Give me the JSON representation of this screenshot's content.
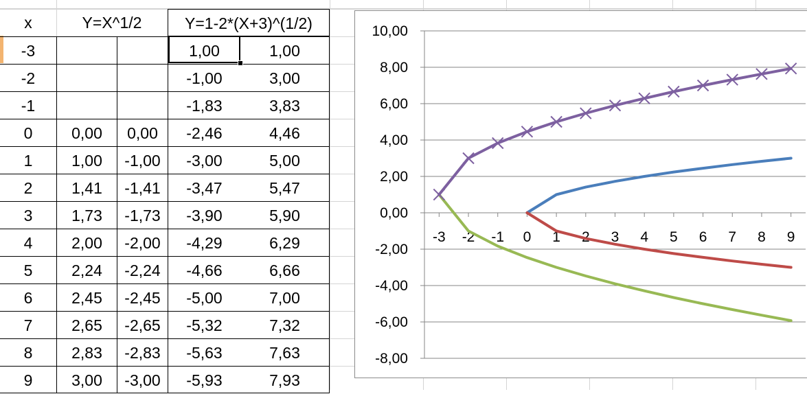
{
  "table": {
    "header": {
      "x": "x",
      "y1": "Y=X^1/2",
      "y2": "Y=1-2*(X+3)^(1/2)"
    },
    "rows": [
      {
        "x": "-3",
        "a": "",
        "b": "",
        "c": "1,00",
        "d": "1,00"
      },
      {
        "x": "-2",
        "a": "",
        "b": "",
        "c": "-1,00",
        "d": "3,00"
      },
      {
        "x": "-1",
        "a": "",
        "b": "",
        "c": "-1,83",
        "d": "3,83"
      },
      {
        "x": "0",
        "a": "0,00",
        "b": "0,00",
        "c": "-2,46",
        "d": "4,46"
      },
      {
        "x": "1",
        "a": "1,00",
        "b": "-1,00",
        "c": "-3,00",
        "d": "5,00"
      },
      {
        "x": "2",
        "a": "1,41",
        "b": "-1,41",
        "c": "-3,47",
        "d": "5,47"
      },
      {
        "x": "3",
        "a": "1,73",
        "b": "-1,73",
        "c": "-3,90",
        "d": "5,90"
      },
      {
        "x": "4",
        "a": "2,00",
        "b": "-2,00",
        "c": "-4,29",
        "d": "6,29"
      },
      {
        "x": "5",
        "a": "2,24",
        "b": "-2,24",
        "c": "-4,66",
        "d": "6,66"
      },
      {
        "x": "6",
        "a": "2,45",
        "b": "-2,45",
        "c": "-5,00",
        "d": "7,00"
      },
      {
        "x": "7",
        "a": "2,65",
        "b": "-2,65",
        "c": "-5,32",
        "d": "7,32"
      },
      {
        "x": "8",
        "a": "2,83",
        "b": "-2,83",
        "c": "-5,63",
        "d": "7,63"
      },
      {
        "x": "9",
        "a": "3,00",
        "b": "-3,00",
        "c": "-5,93",
        "d": "7,93"
      }
    ]
  },
  "chart_data": {
    "type": "line",
    "ylim": [
      -8,
      10
    ],
    "yticks": [
      "-8,00",
      "-6,00",
      "-4,00",
      "-2,00",
      "0,00",
      "2,00",
      "4,00",
      "6,00",
      "8,00",
      "10,00"
    ],
    "ytick_values": [
      -8,
      -6,
      -4,
      -2,
      0,
      2,
      4,
      6,
      8,
      10
    ],
    "xticks": [
      "-3",
      "-2",
      "-1",
      "0",
      "1",
      "2",
      "3",
      "4",
      "5",
      "6",
      "7",
      "8",
      "9"
    ],
    "x": [
      -3,
      -2,
      -1,
      0,
      1,
      2,
      3,
      4,
      5,
      6,
      7,
      8,
      9
    ],
    "grid": true,
    "series": [
      {
        "color": "#4a7ebb",
        "marker": "none",
        "x": [
          0,
          1,
          2,
          3,
          4,
          5,
          6,
          7,
          8,
          9
        ],
        "values": [
          0,
          1,
          1.41,
          1.73,
          2,
          2.24,
          2.45,
          2.65,
          2.83,
          3
        ]
      },
      {
        "color": "#be4b48",
        "marker": "none",
        "x": [
          0,
          1,
          2,
          3,
          4,
          5,
          6,
          7,
          8,
          9
        ],
        "values": [
          0,
          -1,
          -1.41,
          -1.73,
          -2,
          -2.24,
          -2.45,
          -2.65,
          -2.83,
          -3
        ]
      },
      {
        "color": "#98b954",
        "marker": "none",
        "x": [
          -3,
          -2,
          -1,
          0,
          1,
          2,
          3,
          4,
          5,
          6,
          7,
          8,
          9
        ],
        "values": [
          1,
          -1,
          -1.83,
          -2.46,
          -3,
          -3.47,
          -3.9,
          -4.29,
          -4.66,
          -5,
          -5.32,
          -5.63,
          -5.93
        ]
      },
      {
        "color": "#7d60a0",
        "marker": "x",
        "x": [
          -3,
          -2,
          -1,
          0,
          1,
          2,
          3,
          4,
          5,
          6,
          7,
          8,
          9
        ],
        "values": [
          1,
          3,
          3.83,
          4.46,
          5,
          5.47,
          5.9,
          6.29,
          6.66,
          7,
          7.32,
          7.63,
          7.93
        ]
      }
    ]
  }
}
